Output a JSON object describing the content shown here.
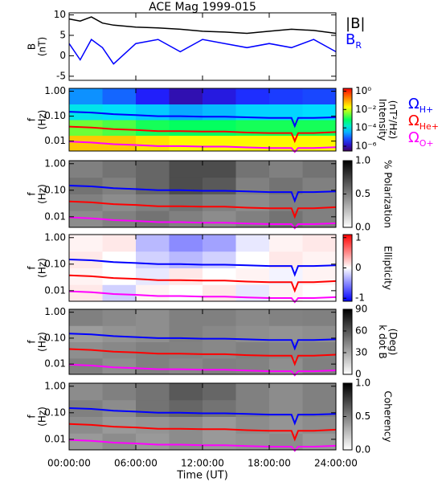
{
  "title": "ACE Mag 1999-015",
  "x_label": "Time (UT)",
  "xlim": [
    0,
    24
  ],
  "xticks": [
    {
      "value": 0,
      "label": "00:00:00"
    },
    {
      "value": 6,
      "label": "06:00:00"
    },
    {
      "value": 12,
      "label": "12:00:00"
    },
    {
      "value": 18,
      "label": "18:00:00"
    },
    {
      "value": 24,
      "label": "24:00:00"
    }
  ],
  "cyclotron": {
    "x": [
      0,
      2,
      4,
      6,
      8,
      10,
      12,
      14,
      16,
      18,
      20,
      20.3,
      20.6,
      22,
      24
    ],
    "series": [
      {
        "name": "Ω",
        "subscript": "H+",
        "color": "#0000ff",
        "values": [
          0.15,
          0.14,
          0.12,
          0.11,
          0.1,
          0.1,
          0.095,
          0.095,
          0.09,
          0.085,
          0.085,
          0.04,
          0.085,
          0.085,
          0.09
        ]
      },
      {
        "name": "Ω",
        "subscript": "He+",
        "color": "#ff0000",
        "values": [
          0.038,
          0.035,
          0.03,
          0.028,
          0.025,
          0.025,
          0.024,
          0.024,
          0.022,
          0.021,
          0.021,
          0.01,
          0.021,
          0.021,
          0.023
        ]
      },
      {
        "name": "Ω",
        "subscript": "O+",
        "color": "#ff00ff",
        "values": [
          0.0095,
          0.0088,
          0.0075,
          0.007,
          0.0063,
          0.0063,
          0.006,
          0.006,
          0.0056,
          0.0053,
          0.0053,
          0.0037,
          0.0053,
          0.0053,
          0.0057
        ]
      }
    ]
  },
  "chart_data": [
    {
      "type": "line",
      "ylabel": [
        "B",
        "(nT)"
      ],
      "ylim": [
        -6,
        10.5
      ],
      "yticks": [
        -5,
        0,
        5,
        10
      ],
      "x": [
        0,
        1,
        2,
        3,
        4,
        6,
        8,
        10,
        12,
        14,
        16,
        18,
        20,
        22,
        24
      ],
      "series": [
        {
          "name": "|B|",
          "color": "#000000",
          "values": [
            9,
            8.5,
            9.5,
            8,
            7.5,
            7,
            6.8,
            6.5,
            6,
            5.8,
            5.5,
            6,
            6.5,
            6.2,
            5.5
          ]
        },
        {
          "name": "B",
          "subscript": "R",
          "color": "#0000ff",
          "values": [
            3,
            -1,
            4,
            2,
            -2,
            3,
            4,
            1,
            4,
            3,
            2,
            3,
            2,
            4,
            1
          ]
        }
      ]
    },
    {
      "type": "heatmap",
      "ylabel": [
        "f",
        "(Hz)"
      ],
      "log_y": true,
      "ylim": [
        0.004,
        1.3
      ],
      "yticks": [
        {
          "value": 1,
          "label": "1.00"
        },
        {
          "value": 0.1,
          "label": "0.10"
        },
        {
          "value": 0.01,
          "label": "0.01"
        }
      ],
      "colorbar": {
        "label": [
          "Intensity",
          "(nT²/Hz)"
        ],
        "lim": [
          3e-07,
          2
        ],
        "log": true,
        "colormap": "rainbow",
        "ticks": [
          {
            "value": 1,
            "label": "10⁰"
          },
          {
            "value": 0.01,
            "label": "10⁻²"
          },
          {
            "value": 0.0001,
            "label": "10⁻⁴"
          },
          {
            "value": 1e-06,
            "label": "10⁻⁶"
          }
        ]
      },
      "z": [
        [
          0.05,
          0.05,
          0.03,
          0.02,
          0.02,
          0.02,
          0.02,
          0.02
        ],
        [
          0.003,
          0.002,
          0.001,
          0.0008,
          0.0008,
          0.001,
          0.001,
          0.001
        ],
        [
          0.0001,
          8e-05,
          5e-05,
          3e-05,
          4e-05,
          6e-05,
          6e-05,
          7e-05
        ],
        [
          2e-05,
          1e-05,
          3e-06,
          1e-06,
          2e-06,
          4e-06,
          5e-06,
          6e-06
        ]
      ]
    },
    {
      "type": "heatmap",
      "ylabel": [
        "f",
        "(Hz)"
      ],
      "log_y": true,
      "ylim": [
        0.004,
        1.3
      ],
      "yticks": [
        {
          "value": 1,
          "label": "1.00"
        },
        {
          "value": 0.1,
          "label": "0.10"
        },
        {
          "value": 0.01,
          "label": "0.01"
        }
      ],
      "colorbar": {
        "label": [
          "% Polarization"
        ],
        "lim": [
          0,
          1
        ],
        "colormap": "gray",
        "ticks": [
          {
            "value": 1,
            "label": "1.0"
          },
          {
            "value": 0.5,
            "label": "0.5"
          },
          {
            "value": 0,
            "label": "0.0"
          }
        ]
      },
      "z": [
        [
          0.45,
          0.5,
          0.55,
          0.5,
          0.45,
          0.5,
          0.55,
          0.5
        ],
        [
          0.5,
          0.45,
          0.5,
          0.55,
          0.5,
          0.45,
          0.5,
          0.5
        ],
        [
          0.55,
          0.5,
          0.6,
          0.7,
          0.65,
          0.5,
          0.55,
          0.5
        ],
        [
          0.5,
          0.55,
          0.6,
          0.7,
          0.7,
          0.55,
          0.5,
          0.55
        ]
      ]
    },
    {
      "type": "heatmap",
      "ylabel": [
        "f",
        "(Hz)"
      ],
      "log_y": true,
      "ylim": [
        0.004,
        1.3
      ],
      "yticks": [
        {
          "value": 1,
          "label": "1.00"
        },
        {
          "value": 0.1,
          "label": "0.10"
        },
        {
          "value": 0.01,
          "label": "0.01"
        }
      ],
      "colorbar": {
        "label": [
          "Ellipticity"
        ],
        "lim": [
          -1.1,
          1.1
        ],
        "colormap": "bwr",
        "ticks": [
          1,
          0,
          -1
        ]
      },
      "z": [
        [
          0.1,
          -0.2,
          0.05,
          0,
          0.1,
          -0.1,
          0.05,
          0
        ],
        [
          0.05,
          0,
          -0.1,
          0.1,
          0,
          0.05,
          -0.05,
          0.05
        ],
        [
          0.1,
          0,
          -0.2,
          -0.3,
          -0.2,
          0,
          0.1,
          0.05
        ],
        [
          0.05,
          0.1,
          -0.3,
          -0.5,
          -0.4,
          -0.1,
          0.05,
          0.1
        ]
      ]
    },
    {
      "type": "heatmap",
      "ylabel": [
        "f",
        "(Hz)"
      ],
      "log_y": true,
      "ylim": [
        0.004,
        1.3
      ],
      "yticks": [
        {
          "value": 1,
          "label": "1.00"
        },
        {
          "value": 0.1,
          "label": "0.10"
        },
        {
          "value": 0.01,
          "label": "0.01"
        }
      ],
      "colorbar": {
        "label": [
          "k dot B",
          "(Deg)"
        ],
        "lim": [
          0,
          90
        ],
        "colormap": "gray",
        "ticks": [
          90,
          60,
          30,
          0
        ]
      },
      "z": [
        [
          45,
          40,
          45,
          42,
          45,
          44,
          40,
          45
        ],
        [
          40,
          42,
          45,
          44,
          42,
          45,
          43,
          44
        ],
        [
          35,
          38,
          40,
          45,
          42,
          40,
          38,
          40
        ],
        [
          45,
          42,
          40,
          45,
          45,
          42,
          44,
          45
        ]
      ]
    },
    {
      "type": "heatmap",
      "ylabel": [
        "f",
        "(Hz)"
      ],
      "log_y": true,
      "ylim": [
        0.004,
        1.3
      ],
      "yticks": [
        {
          "value": 1,
          "label": "1.00"
        },
        {
          "value": 0.1,
          "label": "0.10"
        },
        {
          "value": 0.01,
          "label": "0.01"
        }
      ],
      "colorbar": {
        "label": [
          "Coherency"
        ],
        "lim": [
          0,
          1
        ],
        "colormap": "gray",
        "ticks": [
          {
            "value": 1,
            "label": "1.0"
          },
          {
            "value": 0.5,
            "label": "0.5"
          },
          {
            "value": 0,
            "label": "0.0"
          }
        ]
      },
      "z": [
        [
          0.4,
          0.45,
          0.4,
          0.45,
          0.4,
          0.42,
          0.45,
          0.4
        ],
        [
          0.45,
          0.4,
          0.42,
          0.45,
          0.4,
          0.45,
          0.42,
          0.45
        ],
        [
          0.5,
          0.45,
          0.55,
          0.6,
          0.55,
          0.5,
          0.45,
          0.5
        ],
        [
          0.45,
          0.5,
          0.55,
          0.65,
          0.6,
          0.5,
          0.45,
          0.5
        ]
      ]
    }
  ]
}
